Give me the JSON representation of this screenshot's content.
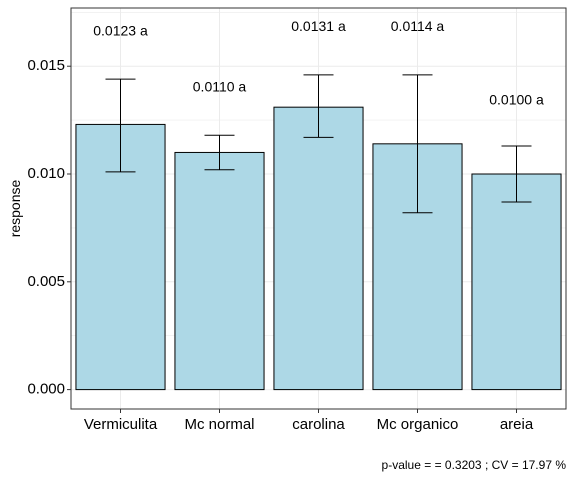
{
  "chart_data": {
    "type": "bar",
    "categories": [
      "Vermiculita",
      "Mc normal",
      "carolina",
      "Mc organico",
      "areia"
    ],
    "values": [
      0.0123,
      0.011,
      0.0131,
      0.0114,
      0.01
    ],
    "error_low": [
      0.0101,
      0.0102,
      0.0117,
      0.0082,
      0.0087
    ],
    "error_high": [
      0.0144,
      0.0118,
      0.0146,
      0.0146,
      0.0113
    ],
    "data_labels": [
      "0.0123 a",
      "0.0110 a",
      "0.0131 a",
      "0.0114 a",
      "0.0100 a"
    ],
    "label_y": [
      0.0166,
      0.014,
      0.0168,
      0.0168,
      0.0134
    ],
    "xlabel": "",
    "ylabel": "response",
    "ylim": [
      -0.0009,
      0.0177
    ],
    "yticks": [
      0.0,
      0.005,
      0.01,
      0.015
    ],
    "ytick_labels": [
      "0.000",
      "0.005",
      "0.010",
      "0.015"
    ],
    "grid": true,
    "legend": "none",
    "colors": {
      "bar_fill": "#add8e6",
      "bar_stroke": "#000000",
      "grid": "#ebebeb"
    }
  },
  "caption": "p-value =  = 0.3203 ; CV =  17.97 %"
}
